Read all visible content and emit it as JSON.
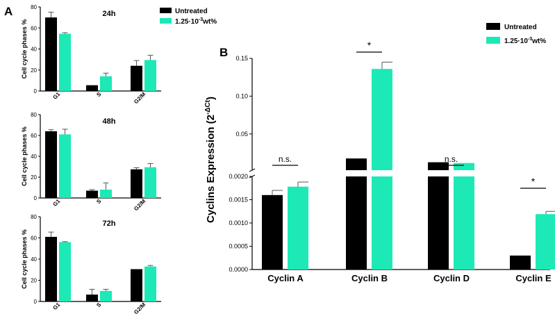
{
  "colors": {
    "untreated": "#000000",
    "treated": "#1de9b6",
    "axis": "#000000"
  },
  "panel_labels": {
    "a": "A",
    "b": "B"
  },
  "legend_a": {
    "untreated": "Untreated",
    "treated_base": "1.25·10",
    "treated_exp": "-3",
    "treated_tail": "wt%"
  },
  "legend_b": {
    "untreated": "Untreated",
    "treated_base": "1.25·10",
    "treated_exp": "-3",
    "treated_tail": "wt%"
  },
  "chart_data": [
    {
      "type": "bar",
      "title": "24h",
      "ylabel": "Cell cycle phases  %",
      "categories": [
        "G1",
        "S",
        "G2/M"
      ],
      "ylim": [
        0,
        80
      ],
      "yticks": [
        "0",
        "20",
        "40",
        "60",
        "80"
      ],
      "series": [
        {
          "name": "Untreated",
          "values": [
            70,
            5.5,
            24
          ],
          "errors": [
            5,
            0,
            5
          ]
        },
        {
          "name": "1.25·10-3 wt%",
          "values": [
            54.5,
            14,
            29.5
          ],
          "errors": [
            1,
            3,
            4.5
          ]
        }
      ]
    },
    {
      "type": "bar",
      "title": "48h",
      "ylabel": "Cell cycle phases  %",
      "categories": [
        "G1",
        "S",
        "G2/M"
      ],
      "ylim": [
        0,
        80
      ],
      "yticks": [
        "0",
        "20",
        "40",
        "60",
        "80"
      ],
      "series": [
        {
          "name": "Untreated",
          "values": [
            64,
            7,
            27.5
          ],
          "errors": [
            1.5,
            1,
            1.5
          ]
        },
        {
          "name": "1.25·10-3 wt%",
          "values": [
            61,
            8,
            29.5
          ],
          "errors": [
            5,
            6.5,
            3.5
          ]
        }
      ]
    },
    {
      "type": "bar",
      "title": "72h",
      "ylabel": "Cell cycle phases  %",
      "categories": [
        "G1",
        "S",
        "G2/M"
      ],
      "ylim": [
        0,
        80
      ],
      "yticks": [
        "0",
        "20",
        "40",
        "60",
        "80"
      ],
      "series": [
        {
          "name": "Untreated",
          "values": [
            61,
            6.5,
            30.5
          ],
          "errors": [
            4.5,
            5,
            0
          ]
        },
        {
          "name": "1.25·10-3 wt%",
          "values": [
            56,
            10,
            33
          ],
          "errors": [
            0.5,
            1.5,
            1
          ]
        }
      ]
    },
    {
      "type": "bar",
      "title": "",
      "ylabel_base": "Cyclins Expression (2",
      "ylabel_exp": "-ΔCt",
      "ylabel_tail": ")",
      "categories": [
        "Cyclin A",
        "Cyclin B",
        "Cyclin D",
        "Cyclin E"
      ],
      "broken_axis": {
        "lower": [
          0,
          0.002
        ],
        "upper": [
          0.002,
          0.15
        ]
      },
      "yticks_lower": [
        "0.0000",
        "0.0005",
        "0.0010",
        "0.0015",
        "0.0020"
      ],
      "yticks_upper": [
        "0.05",
        "0.10",
        "0.15"
      ],
      "series": [
        {
          "name": "Untreated",
          "values": [
            0.0016,
            0.0175,
            0.0125,
            0.0003
          ],
          "errors": [
            0.0001,
            0,
            0,
            0
          ]
        },
        {
          "name": "1.25·10-3 wt%",
          "values": [
            0.00178,
            0.136,
            0.0115,
            0.00119
          ],
          "errors": [
            0.0001,
            0.009,
            0,
            6e-05
          ]
        }
      ],
      "annotations": [
        "n.s.",
        "*",
        "n.s.",
        "*"
      ]
    }
  ]
}
